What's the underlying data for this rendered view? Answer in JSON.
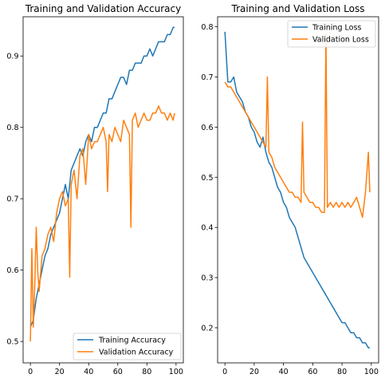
{
  "colors": {
    "train": "#1f77b4",
    "val": "#ff7f0e"
  },
  "chart_data": [
    {
      "type": "line",
      "title": "Training and Validation Accuracy",
      "xlabel": "",
      "ylabel": "",
      "xlim": [
        -5,
        105
      ],
      "ylim": [
        0.47,
        0.955
      ],
      "xticks": [
        0,
        20,
        40,
        60,
        80,
        100
      ],
      "yticks": [
        0.5,
        0.6,
        0.7,
        0.8,
        0.9
      ],
      "legend_position": "lower-right",
      "grid": false,
      "series": [
        {
          "name": "Training Accuracy",
          "color_key": "train",
          "x": [
            0,
            2,
            4,
            6,
            8,
            10,
            12,
            14,
            16,
            18,
            20,
            22,
            24,
            26,
            28,
            30,
            32,
            34,
            36,
            38,
            40,
            42,
            44,
            46,
            48,
            50,
            52,
            54,
            56,
            58,
            60,
            62,
            64,
            66,
            68,
            70,
            72,
            74,
            76,
            78,
            80,
            82,
            84,
            86,
            88,
            90,
            92,
            94,
            96,
            98,
            99
          ],
          "y": [
            0.52,
            0.53,
            0.56,
            0.58,
            0.6,
            0.62,
            0.63,
            0.65,
            0.66,
            0.67,
            0.68,
            0.7,
            0.72,
            0.7,
            0.74,
            0.75,
            0.76,
            0.77,
            0.76,
            0.78,
            0.79,
            0.78,
            0.8,
            0.8,
            0.81,
            0.82,
            0.82,
            0.84,
            0.84,
            0.85,
            0.86,
            0.87,
            0.87,
            0.86,
            0.88,
            0.88,
            0.89,
            0.89,
            0.89,
            0.9,
            0.9,
            0.91,
            0.9,
            0.91,
            0.92,
            0.92,
            0.92,
            0.93,
            0.93,
            0.94,
            0.94
          ]
        },
        {
          "name": "Validation Accuracy",
          "color_key": "val",
          "x": [
            0,
            1,
            2,
            3,
            4,
            5,
            6,
            8,
            10,
            12,
            14,
            16,
            18,
            20,
            22,
            24,
            26,
            27,
            28,
            30,
            32,
            34,
            36,
            38,
            40,
            42,
            44,
            46,
            48,
            50,
            52,
            53,
            54,
            56,
            58,
            60,
            62,
            64,
            66,
            68,
            69,
            70,
            72,
            74,
            76,
            78,
            80,
            82,
            84,
            86,
            88,
            90,
            92,
            94,
            96,
            98,
            99
          ],
          "y": [
            0.5,
            0.63,
            0.52,
            0.58,
            0.66,
            0.6,
            0.57,
            0.62,
            0.63,
            0.65,
            0.66,
            0.64,
            0.68,
            0.7,
            0.71,
            0.69,
            0.7,
            0.59,
            0.72,
            0.74,
            0.7,
            0.76,
            0.77,
            0.72,
            0.79,
            0.77,
            0.78,
            0.78,
            0.79,
            0.8,
            0.78,
            0.71,
            0.79,
            0.78,
            0.8,
            0.79,
            0.78,
            0.81,
            0.8,
            0.79,
            0.66,
            0.81,
            0.82,
            0.8,
            0.81,
            0.82,
            0.81,
            0.81,
            0.82,
            0.82,
            0.83,
            0.82,
            0.82,
            0.81,
            0.82,
            0.81,
            0.82
          ]
        }
      ]
    },
    {
      "type": "line",
      "title": "Training and Validation Loss",
      "xlabel": "",
      "ylabel": "",
      "xlim": [
        -5,
        105
      ],
      "ylim": [
        0.13,
        0.82
      ],
      "xticks": [
        0,
        20,
        40,
        60,
        80,
        100
      ],
      "yticks": [
        0.2,
        0.3,
        0.4,
        0.5,
        0.6,
        0.7,
        0.8
      ],
      "legend_position": "upper-right",
      "grid": false,
      "series": [
        {
          "name": "Training Loss",
          "color_key": "train",
          "x": [
            0,
            2,
            4,
            6,
            8,
            10,
            12,
            14,
            16,
            18,
            20,
            22,
            24,
            26,
            28,
            30,
            32,
            34,
            36,
            38,
            40,
            42,
            44,
            46,
            48,
            50,
            52,
            54,
            56,
            58,
            60,
            62,
            64,
            66,
            68,
            70,
            72,
            74,
            76,
            78,
            80,
            82,
            84,
            86,
            88,
            90,
            92,
            94,
            96,
            98,
            99
          ],
          "y": [
            0.79,
            0.69,
            0.69,
            0.7,
            0.67,
            0.66,
            0.65,
            0.63,
            0.62,
            0.6,
            0.59,
            0.57,
            0.56,
            0.58,
            0.55,
            0.53,
            0.52,
            0.5,
            0.48,
            0.47,
            0.45,
            0.44,
            0.42,
            0.41,
            0.4,
            0.38,
            0.36,
            0.34,
            0.33,
            0.32,
            0.31,
            0.3,
            0.29,
            0.28,
            0.27,
            0.26,
            0.25,
            0.24,
            0.23,
            0.22,
            0.21,
            0.21,
            0.2,
            0.19,
            0.19,
            0.18,
            0.18,
            0.17,
            0.17,
            0.16,
            0.16
          ]
        },
        {
          "name": "Validation Loss",
          "color_key": "val",
          "x": [
            0,
            2,
            4,
            6,
            8,
            10,
            12,
            14,
            16,
            18,
            20,
            22,
            24,
            26,
            28,
            29,
            30,
            32,
            34,
            36,
            38,
            40,
            42,
            44,
            46,
            48,
            50,
            52,
            53,
            54,
            56,
            58,
            60,
            62,
            64,
            66,
            68,
            69,
            70,
            72,
            74,
            76,
            78,
            80,
            82,
            84,
            86,
            88,
            90,
            92,
            94,
            96,
            98,
            99
          ],
          "y": [
            0.69,
            0.68,
            0.68,
            0.67,
            0.66,
            0.65,
            0.64,
            0.63,
            0.62,
            0.61,
            0.6,
            0.59,
            0.58,
            0.57,
            0.56,
            0.7,
            0.55,
            0.54,
            0.52,
            0.51,
            0.5,
            0.49,
            0.48,
            0.47,
            0.47,
            0.46,
            0.46,
            0.45,
            0.61,
            0.47,
            0.46,
            0.45,
            0.45,
            0.44,
            0.44,
            0.43,
            0.43,
            0.79,
            0.44,
            0.45,
            0.44,
            0.45,
            0.44,
            0.45,
            0.44,
            0.45,
            0.44,
            0.45,
            0.46,
            0.44,
            0.42,
            0.47,
            0.55,
            0.47
          ]
        }
      ]
    }
  ]
}
